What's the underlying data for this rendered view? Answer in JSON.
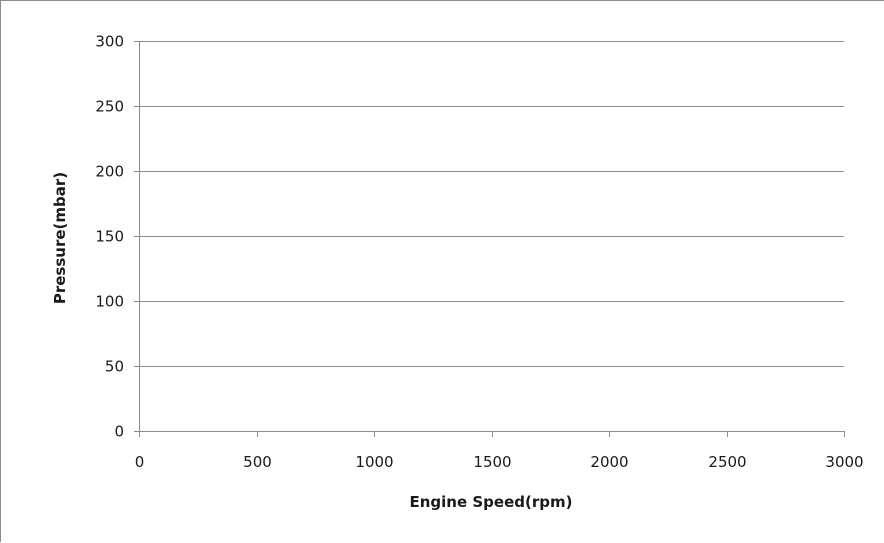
{
  "chart_data": {
    "type": "line",
    "title": "",
    "xlabel": "Engine Speed(rpm)",
    "ylabel": "Pressure(mbar)",
    "xlim": [
      0,
      3000
    ],
    "ylim": [
      0,
      300
    ],
    "xticks": [
      "0",
      "500",
      "1000",
      "1500",
      "2000",
      "2500",
      "3000"
    ],
    "yticks": [
      "0",
      "50",
      "100",
      "150",
      "200",
      "250",
      "300"
    ],
    "x_major_unit": 500,
    "y_major_unit": 50,
    "grid": "horizontal",
    "legend": "none",
    "series": []
  },
  "colors": {
    "gridline": "#8c8c8c",
    "axis": "#8c8c8c",
    "text": "#1a1a1a"
  }
}
